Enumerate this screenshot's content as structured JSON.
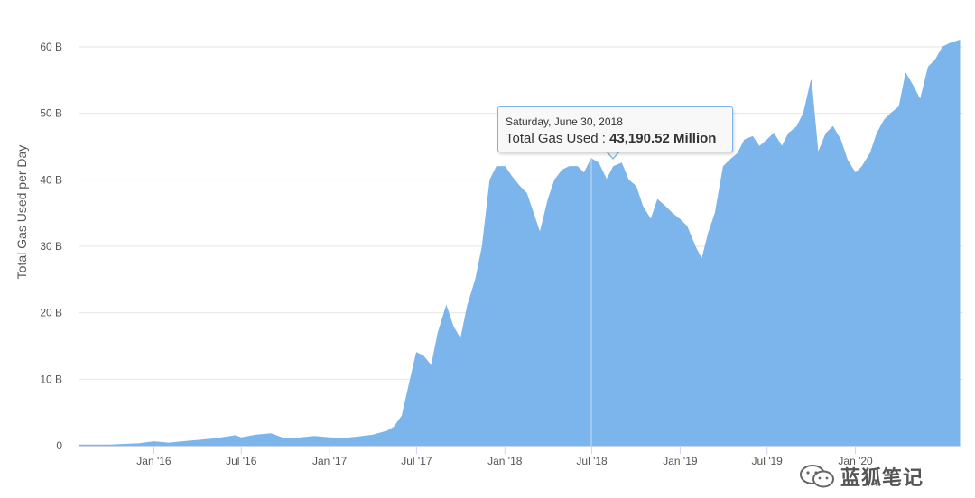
{
  "chart_data": {
    "type": "area",
    "title": "",
    "ylabel": "Total Gas Used per Day",
    "xlabel": "",
    "ylim": [
      0,
      62
    ],
    "y_unit": "B",
    "y_ticks": [
      {
        "value": 0,
        "label": "0"
      },
      {
        "value": 10,
        "label": "10 B"
      },
      {
        "value": 20,
        "label": "20 B"
      },
      {
        "value": 30,
        "label": "30 B"
      },
      {
        "value": 40,
        "label": "40 B"
      },
      {
        "value": 50,
        "label": "50 B"
      },
      {
        "value": 60,
        "label": "60 B"
      }
    ],
    "x_range": [
      "2015-07-30",
      "2020-08-05"
    ],
    "x_ticks": [
      {
        "date": "2016-01-01",
        "label": "Jan '16"
      },
      {
        "date": "2016-07-01",
        "label": "Jul '16"
      },
      {
        "date": "2017-01-01",
        "label": "Jan '17"
      },
      {
        "date": "2017-07-01",
        "label": "Jul '17"
      },
      {
        "date": "2018-01-01",
        "label": "Jan '18"
      },
      {
        "date": "2018-07-01",
        "label": "Jul '18"
      },
      {
        "date": "2019-01-01",
        "label": "Jan '19"
      },
      {
        "date": "2019-07-01",
        "label": "Jul '19"
      },
      {
        "date": "2020-01-01",
        "label": "Jan '20"
      }
    ],
    "grid": true,
    "legend": "none",
    "color": "#7cb5ec",
    "series": [
      {
        "x": [
          "2015-07-30",
          "2015-09-01",
          "2015-10-01",
          "2015-11-01",
          "2015-12-01",
          "2016-01-01",
          "2016-02-01",
          "2016-03-01",
          "2016-04-01",
          "2016-05-01",
          "2016-06-01",
          "2016-06-18",
          "2016-07-01",
          "2016-08-01",
          "2016-09-01",
          "2016-10-01",
          "2016-11-01",
          "2016-12-01",
          "2017-01-01",
          "2017-02-01",
          "2017-03-01",
          "2017-04-01",
          "2017-05-01",
          "2017-05-15",
          "2017-06-01",
          "2017-06-15",
          "2017-07-01",
          "2017-07-15",
          "2017-08-01",
          "2017-08-15",
          "2017-09-01",
          "2017-09-15",
          "2017-10-01",
          "2017-10-15",
          "2017-11-01",
          "2017-11-15",
          "2017-12-01",
          "2017-12-15",
          "2018-01-01",
          "2018-01-15",
          "2018-02-01",
          "2018-02-15",
          "2018-03-01",
          "2018-03-15",
          "2018-04-01",
          "2018-04-15",
          "2018-05-01",
          "2018-05-15",
          "2018-06-01",
          "2018-06-15",
          "2018-06-30",
          "2018-07-15",
          "2018-08-01",
          "2018-08-15",
          "2018-09-01",
          "2018-09-15",
          "2018-10-01",
          "2018-10-15",
          "2018-11-01",
          "2018-11-15",
          "2018-12-01",
          "2018-12-15",
          "2019-01-01",
          "2019-01-15",
          "2019-02-01",
          "2019-02-15",
          "2019-03-01",
          "2019-03-15",
          "2019-04-01",
          "2019-04-15",
          "2019-05-01",
          "2019-05-15",
          "2019-06-01",
          "2019-06-15",
          "2019-07-01",
          "2019-07-15",
          "2019-08-01",
          "2019-08-15",
          "2019-09-01",
          "2019-09-15",
          "2019-10-01",
          "2019-10-15",
          "2019-11-01",
          "2019-11-15",
          "2019-12-01",
          "2019-12-15",
          "2020-01-01",
          "2020-01-15",
          "2020-02-01",
          "2020-02-15",
          "2020-03-01",
          "2020-03-15",
          "2020-04-01",
          "2020-04-15",
          "2020-05-01",
          "2020-05-15",
          "2020-06-01",
          "2020-06-15",
          "2020-07-01",
          "2020-07-15",
          "2020-08-05"
        ],
        "values": [
          0.1,
          0.1,
          0.1,
          0.2,
          0.3,
          0.6,
          0.4,
          0.6,
          0.8,
          1.0,
          1.3,
          1.5,
          1.2,
          1.6,
          1.8,
          1.0,
          1.2,
          1.4,
          1.2,
          1.1,
          1.3,
          1.6,
          2.2,
          2.8,
          4.5,
          9.0,
          14.0,
          13.5,
          12.0,
          17.0,
          21.0,
          18.0,
          16.0,
          21.0,
          25.0,
          30.0,
          40.0,
          42.0,
          42.0,
          40.5,
          39.0,
          38.0,
          35.0,
          32.0,
          37.0,
          40.0,
          41.5,
          42.0,
          42.0,
          41.0,
          43.19,
          42.5,
          40.0,
          42.0,
          42.5,
          40.0,
          39.0,
          36.0,
          34.0,
          37.0,
          36.0,
          35.0,
          34.0,
          33.0,
          30.0,
          28.0,
          32.0,
          35.0,
          42.0,
          43.0,
          44.0,
          46.0,
          46.5,
          45.0,
          46.0,
          47.0,
          45.0,
          47.0,
          48.0,
          50.0,
          55.0,
          44.0,
          47.0,
          48.0,
          46.0,
          43.0,
          41.0,
          42.0,
          44.0,
          47.0,
          49.0,
          50.0,
          51.0,
          56.0,
          54.0,
          52.0,
          57.0,
          58.0,
          60.0,
          60.5,
          61.0
        ]
      }
    ],
    "tooltip": {
      "date": "Saturday, June 30, 2018",
      "label": "Total Gas Used : ",
      "value": "43,190.52 Million",
      "x": "2018-06-30",
      "y": 43.19
    }
  },
  "watermark": {
    "text": "蓝狐笔记",
    "icon": "wechat-logo-icon"
  }
}
